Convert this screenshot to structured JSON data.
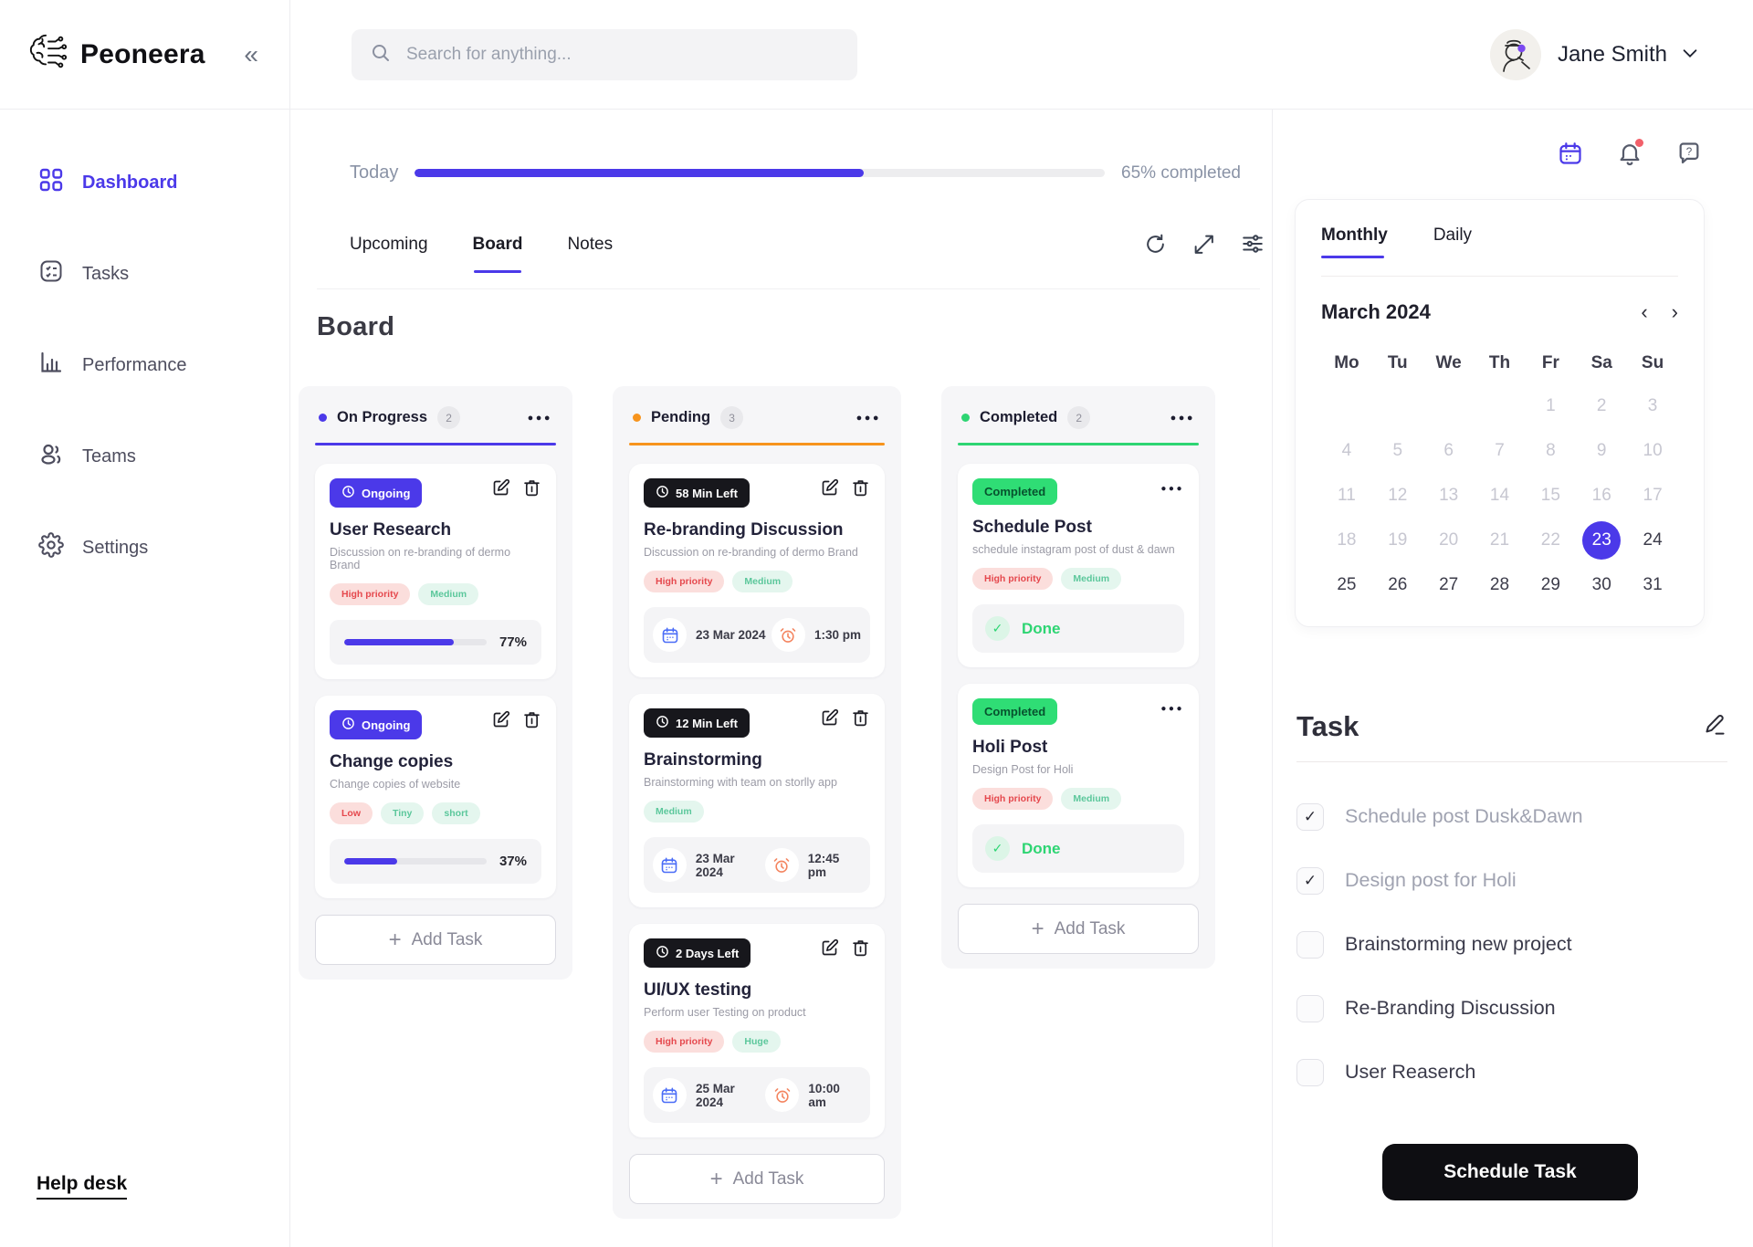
{
  "brand": {
    "name": "Peoneera"
  },
  "topbar": {
    "search_placeholder": "Search for anything...",
    "user_name": "Jane Smith"
  },
  "sidebar": {
    "items": [
      {
        "label": "Dashboard",
        "active": true
      },
      {
        "label": "Tasks",
        "active": false
      },
      {
        "label": "Performance",
        "active": false
      },
      {
        "label": "Teams",
        "active": false
      },
      {
        "label": "Settings",
        "active": false
      }
    ],
    "help_label": "Help desk"
  },
  "progress": {
    "label": "Today",
    "percent": 65,
    "completed_label": "65% completed"
  },
  "view_tabs": [
    {
      "label": "Upcoming",
      "active": false
    },
    {
      "label": "Board",
      "active": true
    },
    {
      "label": "Notes",
      "active": false
    }
  ],
  "board": {
    "title": "Board",
    "columns": [
      {
        "name": "On Progress",
        "count": "2",
        "accent": "#4B39E9",
        "add_label": "Add Task",
        "cards": [
          {
            "type": "progress",
            "badge": "Ongoing",
            "title": "User Research",
            "desc": "Discussion on re-branding of dermo Brand",
            "tags": [
              {
                "label": "High priority",
                "tone": "red"
              },
              {
                "label": "Medium",
                "tone": "green"
              }
            ],
            "percent": 77,
            "percent_label": "77%"
          },
          {
            "type": "progress",
            "badge": "Ongoing",
            "title": "Change copies",
            "desc": "Change copies of website",
            "tags": [
              {
                "label": "Low",
                "tone": "red"
              },
              {
                "label": "Tiny",
                "tone": "green"
              },
              {
                "label": "short",
                "tone": "green"
              }
            ],
            "percent": 37,
            "percent_label": "37%"
          }
        ]
      },
      {
        "name": "Pending",
        "count": "3",
        "accent": "#F7941D",
        "add_label": "Add Task",
        "cards": [
          {
            "type": "schedule",
            "badge": "58 Min Left",
            "title": "Re-branding Discussion",
            "desc": "Discussion on re-branding of dermo Brand",
            "tags": [
              {
                "label": "High priority",
                "tone": "red"
              },
              {
                "label": "Medium",
                "tone": "green"
              }
            ],
            "date": "23 Mar 2024",
            "time": "1:30 pm"
          },
          {
            "type": "schedule",
            "badge": "12 Min Left",
            "title": "Brainstorming",
            "desc": "Brainstorming with team on storlly app",
            "tags": [
              {
                "label": "Medium",
                "tone": "green"
              }
            ],
            "date": "23 Mar 2024",
            "time": "12:45 pm"
          },
          {
            "type": "schedule",
            "badge": "2 Days Left",
            "title": "UI/UX testing",
            "desc": "Perform user Testing on product",
            "tags": [
              {
                "label": "High priority",
                "tone": "red"
              },
              {
                "label": "Huge",
                "tone": "green"
              }
            ],
            "date": "25 Mar 2024",
            "time": "10:00 am"
          }
        ]
      },
      {
        "name": "Completed",
        "count": "2",
        "accent": "#2ED573",
        "add_label": "Add Task",
        "cards": [
          {
            "type": "done",
            "badge": "Completed",
            "title": "Schedule Post",
            "desc": "schedule instagram post of dust & dawn",
            "tags": [
              {
                "label": "High priority",
                "tone": "red"
              },
              {
                "label": "Medium",
                "tone": "green"
              }
            ],
            "done_label": "Done"
          },
          {
            "type": "done",
            "badge": "Completed",
            "title": "Holi Post",
            "desc": "Design Post for Holi",
            "tags": [
              {
                "label": "High priority",
                "tone": "red"
              },
              {
                "label": "Medium",
                "tone": "green"
              }
            ],
            "done_label": "Done"
          }
        ]
      }
    ]
  },
  "panel": {
    "calendar": {
      "tabs": [
        {
          "label": "Monthly",
          "active": true
        },
        {
          "label": "Daily",
          "active": false
        }
      ],
      "month_label": "March 2024",
      "day_headers": [
        "Mo",
        "Tu",
        "We",
        "Th",
        "Fr",
        "Sa",
        "Su"
      ],
      "selected_day": 23,
      "weeks": [
        [
          null,
          null,
          null,
          null,
          1,
          2,
          3
        ],
        [
          4,
          5,
          6,
          7,
          8,
          9,
          10
        ],
        [
          11,
          12,
          13,
          14,
          15,
          16,
          17
        ],
        [
          18,
          19,
          20,
          21,
          22,
          23,
          24
        ],
        [
          25,
          26,
          27,
          28,
          29,
          30,
          31
        ]
      ]
    },
    "task": {
      "title": "Task",
      "items": [
        {
          "label": "Schedule post Dusk&Dawn",
          "checked": true
        },
        {
          "label": "Design post for Holi",
          "checked": true
        },
        {
          "label": "Brainstorming new project",
          "checked": false
        },
        {
          "label": "Re-Branding Discussion",
          "checked": false
        },
        {
          "label": "User Reaserch",
          "checked": false
        }
      ],
      "button_label": "Schedule Task"
    }
  },
  "colors": {
    "primary": "#4B39E9",
    "pending_accent": "#F7941D",
    "success": "#2ED573",
    "tag_red_text": "#E5484D",
    "tag_red_bg": "#FBDEDC",
    "tag_green_text": "#5BC79B",
    "tag_green_bg": "#E4F6EE",
    "badge_dark_bg": "#17171C",
    "schedule_button_bg": "#0E0E12",
    "notification_dot": "#F2606A"
  }
}
